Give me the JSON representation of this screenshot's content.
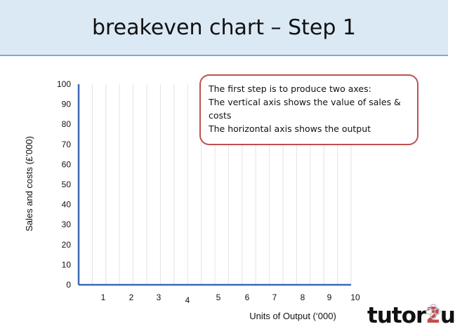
{
  "slide": {
    "title": "breakeven chart – Step 1"
  },
  "callout": {
    "lines": [
      "The first step is to produce two axes:",
      "The vertical axis shows the value of sales &",
      "costs",
      "The horizontal axis shows the output"
    ]
  },
  "logo": {
    "text": "tutor2u",
    "accent_color": "#c0504d"
  },
  "chart_data": {
    "type": "line",
    "xlabel": "Units of Output (‘000)",
    "ylabel": "Sales and costs (£’000)",
    "xlim": [
      0,
      10
    ],
    "ylim": [
      0,
      100
    ],
    "x_ticks": [
      "1",
      "2",
      "3",
      "4",
      "5",
      "6",
      "7",
      "8",
      "9",
      "10"
    ],
    "y_ticks": [
      "0",
      "10",
      "20",
      "30",
      "40",
      "50",
      "60",
      "70",
      "80",
      "90",
      "100"
    ],
    "series": [],
    "grid": true,
    "axis_color": "#3b6ab5",
    "grid_color": "#e3e3e3"
  }
}
